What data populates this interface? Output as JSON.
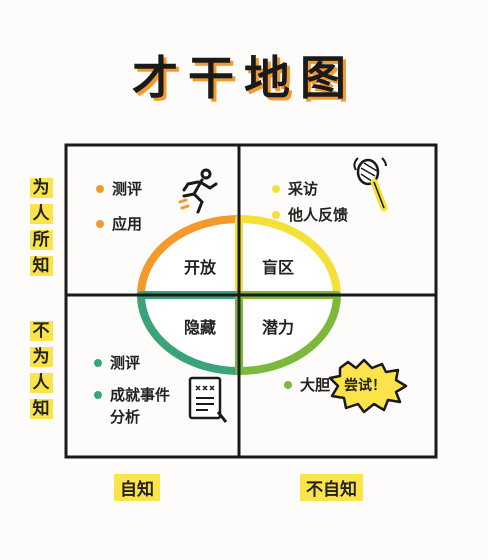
{
  "title": "才干地图",
  "axes": {
    "left_top": [
      "为",
      "人",
      "所",
      "知"
    ],
    "left_bottom": [
      "不",
      "为",
      "人",
      "知"
    ],
    "bottom_left": "自知",
    "bottom_right": "不自知"
  },
  "quadrants": {
    "open": {
      "name": "开放",
      "items": [
        "测评",
        "应用"
      ]
    },
    "blind": {
      "name": "盲区",
      "items": [
        "采访",
        "他人反馈"
      ]
    },
    "hidden": {
      "name": "隐藏",
      "items": [
        "测评",
        "成就事件",
        "分析"
      ]
    },
    "potential": {
      "name": "潜力",
      "items": [
        "大胆"
      ]
    }
  },
  "badge": "尝试！",
  "colors": {
    "orange": "#f39a2b",
    "yellow": "#f5e03a",
    "teal": "#3aa37a",
    "green": "#7ab93a"
  },
  "icons": [
    "running-person-icon",
    "microphone-icon",
    "document-icon",
    "burst-badge-icon"
  ]
}
